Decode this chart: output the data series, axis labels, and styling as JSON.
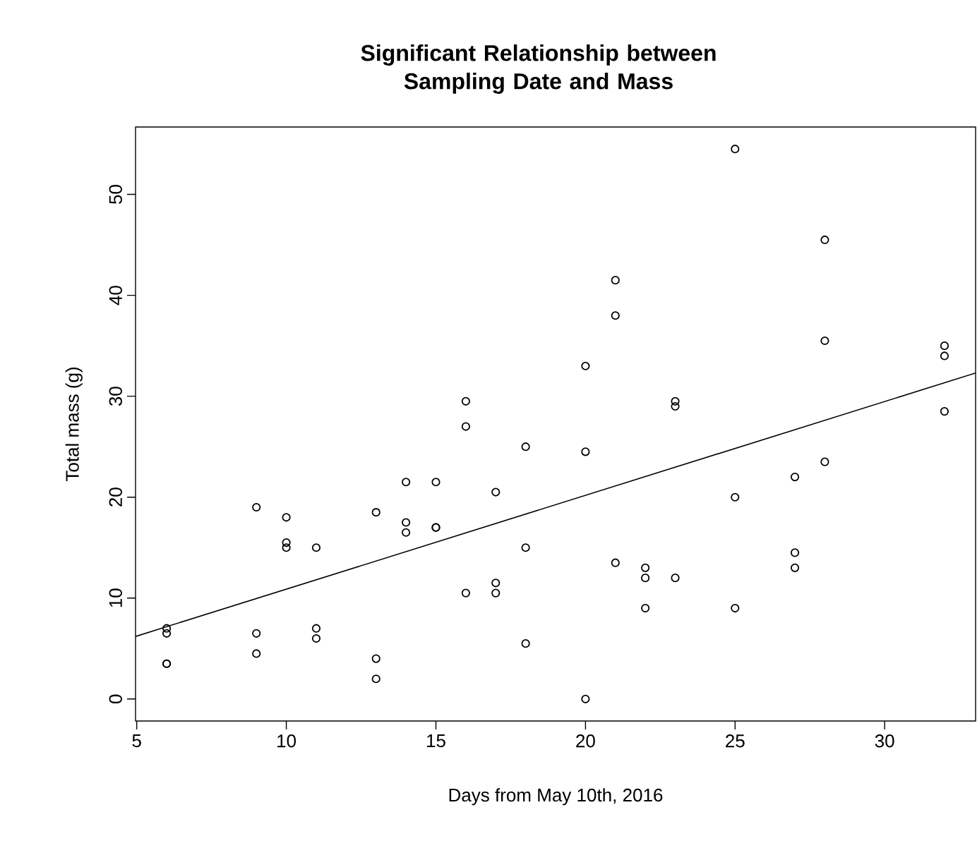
{
  "chart_data": {
    "type": "scatter",
    "title": "Significant Relationship between Sampling Date and Mass",
    "xlabel": "Days from May 10th, 2016",
    "ylabel": "Total mass (g)",
    "xlim": [
      4.96,
      33.04
    ],
    "ylim": [
      -2.18,
      56.68
    ],
    "xticks": [
      5,
      10,
      15,
      20,
      25,
      30
    ],
    "yticks": [
      0,
      10,
      20,
      30,
      40,
      50
    ],
    "marker": "circle",
    "series": [
      {
        "color": "#000000",
        "x": [
          6,
          6,
          6,
          6,
          9,
          9,
          9,
          10,
          10,
          10,
          11,
          11,
          11,
          13,
          13,
          13,
          14,
          14,
          14,
          15,
          15,
          15,
          16,
          16,
          16,
          17,
          17,
          17,
          18,
          18,
          18,
          20,
          20,
          20,
          21,
          21,
          21,
          22,
          22,
          22,
          23,
          23,
          23,
          25,
          25,
          25,
          27,
          27,
          27,
          28,
          28,
          28,
          32,
          32,
          32
        ],
        "values": [
          7,
          6.5,
          3.5,
          3.5,
          19,
          6.5,
          4.5,
          18,
          15.5,
          15,
          15,
          7,
          6,
          18.5,
          4,
          2,
          21.5,
          17.5,
          16.5,
          21.5,
          17,
          17,
          29.5,
          27,
          10.5,
          20.5,
          11.5,
          10.5,
          25,
          15,
          5.5,
          33,
          24.5,
          0,
          41.5,
          38,
          13.5,
          13,
          12,
          9,
          29.5,
          29,
          12,
          54.5,
          20,
          9,
          22,
          14.5,
          13,
          45.5,
          35.5,
          23.5,
          35,
          34,
          28.5
        ]
      },
      {
        "type": "line",
        "color": "#000000",
        "marker": "none",
        "x": [
          4.96,
          33.04
        ],
        "values": [
          6.2,
          32.3
        ]
      }
    ]
  }
}
